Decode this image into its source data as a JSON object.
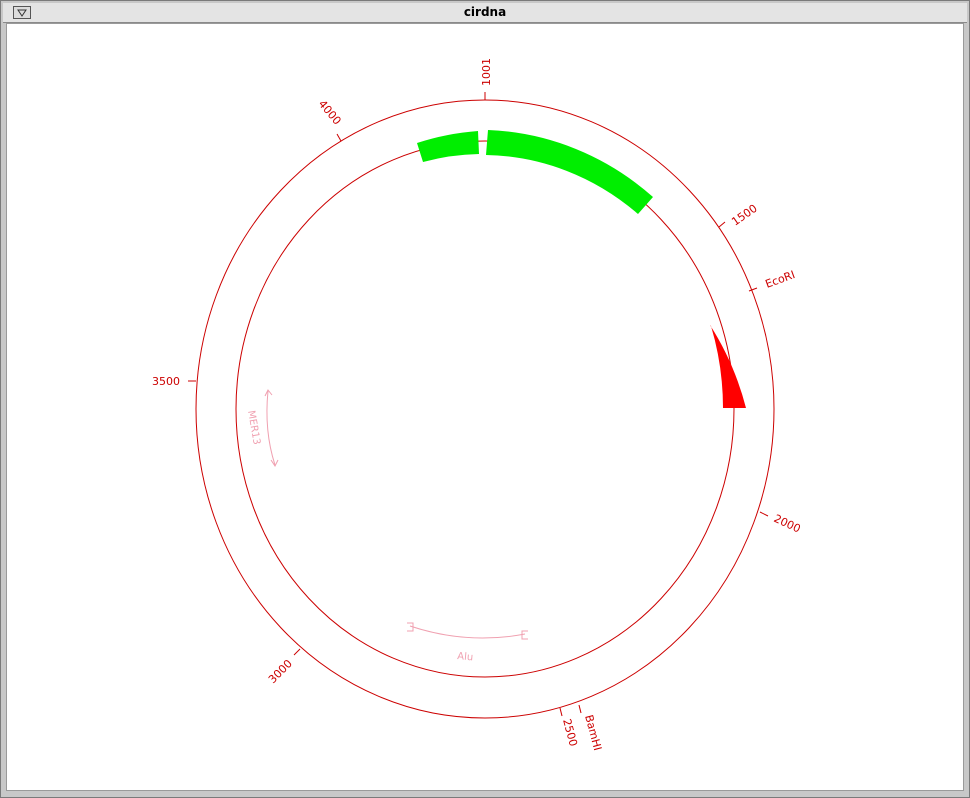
{
  "window": {
    "title": "cirdna"
  },
  "plot": {
    "ticks": [
      {
        "label": "1001"
      },
      {
        "label": "1500"
      },
      {
        "label": "2000"
      },
      {
        "label": "2500"
      },
      {
        "label": "3000"
      },
      {
        "label": "3500"
      },
      {
        "label": "4000"
      }
    ],
    "sites": [
      {
        "label": "EcoRI"
      },
      {
        "label": "BamHI"
      }
    ],
    "features": [
      {
        "label": "MER13"
      },
      {
        "label": "Alu"
      }
    ],
    "colors": {
      "circle": "#cc0000",
      "block_green": "#00ee00",
      "block_red": "#ff0000",
      "feature": "#f0a0b0"
    }
  }
}
